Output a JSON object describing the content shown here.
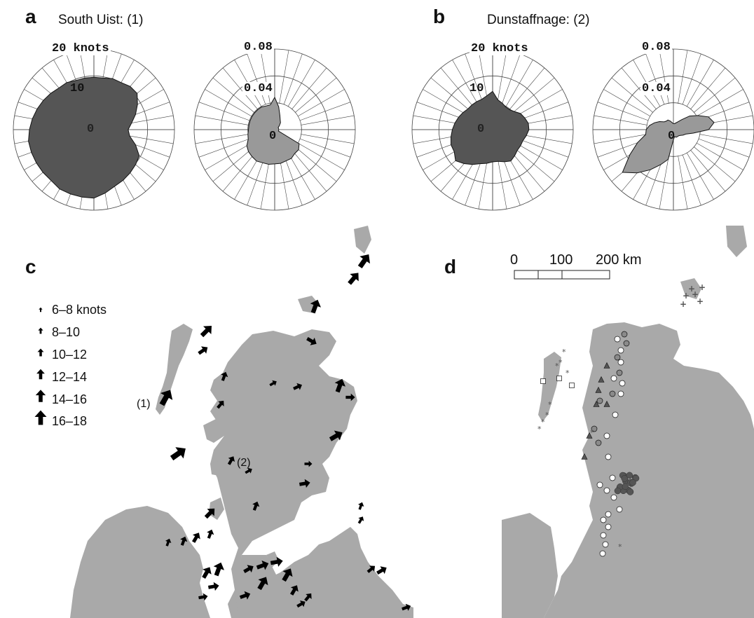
{
  "figure": {
    "panels": [
      {
        "letter": "a",
        "title": "South Uist: (1)",
        "label_speed": "20 knots",
        "ring_mid": "10",
        "ring_zero": "0",
        "label_freq_outer": "0.08",
        "label_freq_mid": "0.04",
        "freq_zero": "0"
      },
      {
        "letter": "b",
        "title": "Dunstaffnage: (2)",
        "label_speed": "20 knots",
        "ring_mid": "10",
        "ring_zero": "0",
        "label_freq_outer": "0.08",
        "label_freq_mid": "0.04",
        "freq_zero": "0"
      },
      {
        "letter": "c"
      },
      {
        "letter": "d"
      }
    ]
  },
  "colors": {
    "speed_rose_fill": "#555555",
    "freq_rose_fill": "#999999",
    "land": "#a9a9a9",
    "grid": "#444444",
    "arrow": "#000000",
    "marker_dark": "#555555",
    "marker_mid": "#8a8a8a",
    "marker_light": "#ffffff"
  },
  "roses": {
    "south_uist": {
      "speed_knots": [
        13,
        13,
        13.5,
        13.5,
        14,
        14,
        12.5,
        11,
        9.5,
        8.5,
        9,
        11,
        13,
        13.5,
        14,
        14.5,
        15,
        16,
        17,
        17,
        17,
        17,
        16.5,
        16.5,
        16.5,
        16.5,
        16.5,
        16,
        15.5,
        15,
        14.5,
        14,
        13.5,
        13.5,
        13,
        13
      ],
      "frequency": [
        0.032,
        0.023,
        0.015,
        0.011,
        0.009,
        0.006,
        0.004,
        0.004,
        0.004,
        0.004,
        0.004,
        0.004,
        0.028,
        0.031,
        0.031,
        0.033,
        0.033,
        0.034,
        0.034,
        0.035,
        0.035,
        0.036,
        0.035,
        0.034,
        0.032,
        0.028,
        0.027,
        0.026,
        0.026,
        0.026,
        0.026,
        0.026,
        0.026,
        0.026,
        0.025,
        0.025
      ]
    },
    "dunstaffnage": {
      "speed_knots": [
        9.5,
        7.5,
        7,
        6.5,
        6.5,
        7,
        8,
        8.5,
        9,
        9,
        8.5,
        8,
        8,
        8,
        8.5,
        9,
        8.5,
        8,
        8,
        8.5,
        9,
        10,
        11,
        12,
        11,
        11,
        10.5,
        10,
        9.5,
        9,
        8.5,
        8,
        8,
        8,
        8,
        8.5
      ],
      "frequency": [
        0.006,
        0.006,
        0.007,
        0.009,
        0.013,
        0.021,
        0.028,
        0.037,
        0.041,
        0.035,
        0.02,
        0.013,
        0.011,
        0.009,
        0.008,
        0.008,
        0.008,
        0.007,
        0.01,
        0.03,
        0.037,
        0.046,
        0.056,
        0.066,
        0.05,
        0.038,
        0.028,
        0.027,
        0.024,
        0.02,
        0.016,
        0.012,
        0.011,
        0.011,
        0.009,
        0.007
      ]
    }
  },
  "legend": {
    "items": [
      "6–8 knots",
      "8–10",
      "10–12",
      "12–14",
      "14–16",
      "16–18"
    ]
  },
  "map_c": {
    "site_1": "(1)",
    "site_2": "(2)"
  },
  "scale_bar": {
    "tick_0": "0",
    "tick_100": "100",
    "tick_200": "200 km"
  }
}
